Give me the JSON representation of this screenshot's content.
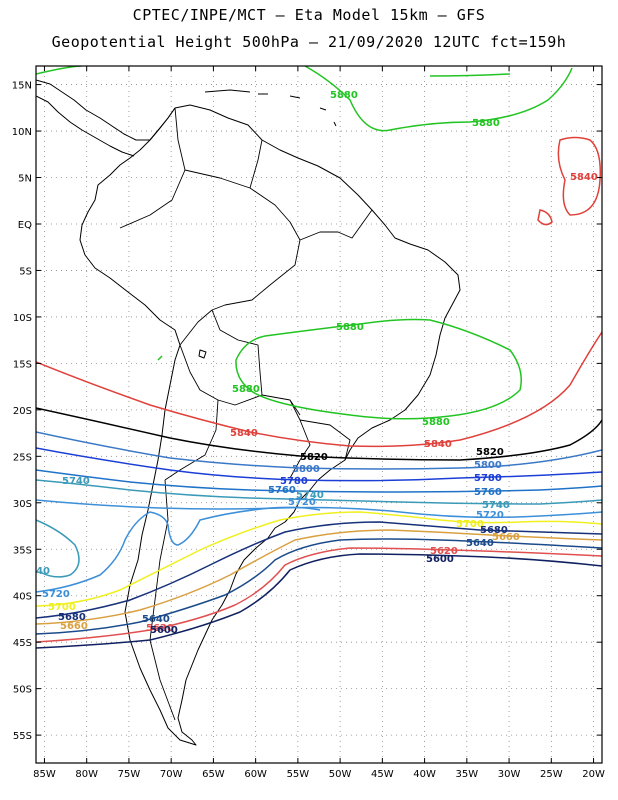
{
  "header": {
    "line1": "CPTEC/INPE/MCT  –  Eta Model 15km  –  GFS",
    "line2": "Geopotential Height 500hPa  –  21/09/2020 12UTC fct=159h"
  },
  "axes": {
    "lon_ticks": [
      "85W",
      "80W",
      "75W",
      "70W",
      "65W",
      "60W",
      "55W",
      "50W",
      "45W",
      "40W",
      "35W",
      "30W",
      "25W",
      "20W"
    ],
    "lat_ticks": [
      "15N",
      "10N",
      "5N",
      "EQ",
      "5S",
      "10S",
      "15S",
      "20S",
      "25S",
      "30S",
      "35S",
      "40S",
      "45S",
      "50S",
      "55S"
    ],
    "lon_range": [
      -86,
      -19
    ],
    "lat_range": [
      17,
      -58
    ]
  },
  "colors": {
    "c5880": "#22c422",
    "c5840": "#e0403a",
    "c5820": "#000000",
    "c5800": "#3a78c8",
    "c5780": "#1b3fd6",
    "c5760": "#1f72c8",
    "c5740": "#3a9ab8",
    "c5720": "#3c8fd9",
    "c5700": "#f0f020",
    "c5680": "#16307a",
    "c5660": "#d9a040",
    "c5640": "#1a4a8a",
    "c5620": "#e05050",
    "c5600": "#102060"
  },
  "contour_labels": {
    "v5880": "5880",
    "v5840": "5840",
    "v5820": "5820",
    "v5800": "5800",
    "v5780": "5780",
    "v5760": "5760",
    "v5740": "5740",
    "v5720": "5720",
    "v5700": "5700",
    "v5680": "5680",
    "v5660": "5660",
    "v5640": "5640",
    "v5620": "5620",
    "v5600": "5600"
  },
  "left_edge_label": "40"
}
